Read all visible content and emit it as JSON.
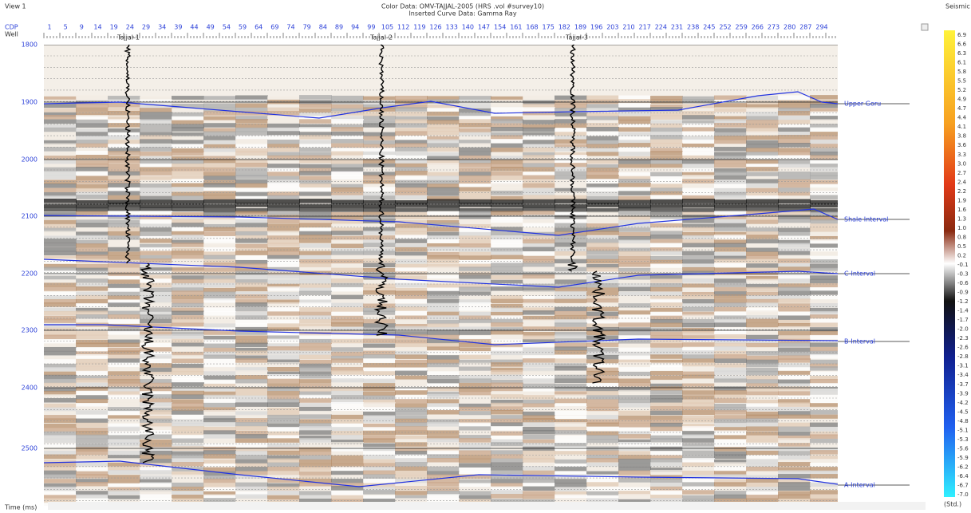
{
  "header": {
    "view": "View 1",
    "color_data": "Color Data: OMV-TAJJAL-2005 (HRS .vol #survey10)",
    "curve_data": "Inserted Curve Data: Gamma Ray"
  },
  "axes": {
    "cdp_label": "CDP",
    "well_label": "Well",
    "time_label": "Time (ms)",
    "cdp_ticks": [
      "1",
      "5",
      "9",
      "14",
      "19",
      "24",
      "29",
      "34",
      "39",
      "44",
      "49",
      "54",
      "59",
      "64",
      "69",
      "74",
      "79",
      "84",
      "89",
      "94",
      "99",
      "105",
      "112",
      "119",
      "126",
      "133",
      "140",
      "147",
      "154",
      "161",
      "168",
      "175",
      "182",
      "189",
      "196",
      "203",
      "210",
      "217",
      "224",
      "231",
      "238",
      "245",
      "252",
      "259",
      "266",
      "273",
      "280",
      "287",
      "294"
    ],
    "time_ticks": [
      "1800",
      "1900",
      "2000",
      "2100",
      "2200",
      "2300",
      "2400",
      "2500"
    ]
  },
  "wells": [
    "Tajjal-1",
    "Tajjal-2",
    "Tajjal-3"
  ],
  "horizons": [
    "Upper Goru",
    "Shale Interval",
    "C-Interval",
    "B-Interval",
    "A-Interval"
  ],
  "colorbar": {
    "title": "Seismic",
    "unit": "(Std.)",
    "labels": [
      "6.9",
      "6.6",
      "6.3",
      "6.1",
      "5.8",
      "5.5",
      "5.2",
      "4.9",
      "4.7",
      "4.4",
      "4.1",
      "3.8",
      "3.6",
      "3.3",
      "3.0",
      "2.7",
      "2.4",
      "2.2",
      "1.9",
      "1.6",
      "1.3",
      "1.0",
      "0.8",
      "0.5",
      "0.2",
      "-0.1",
      "-0.3",
      "-0.6",
      "-0.9",
      "-1.2",
      "-1.4",
      "-1.7",
      "-2.0",
      "-2.3",
      "-2.6",
      "-2.8",
      "-3.1",
      "-3.4",
      "-3.7",
      "-3.9",
      "-4.2",
      "-4.5",
      "-4.8",
      "-5.1",
      "-5.3",
      "-5.6",
      "-5.9",
      "-6.2",
      "-6.4",
      "-6.7",
      "-7.0"
    ]
  }
}
